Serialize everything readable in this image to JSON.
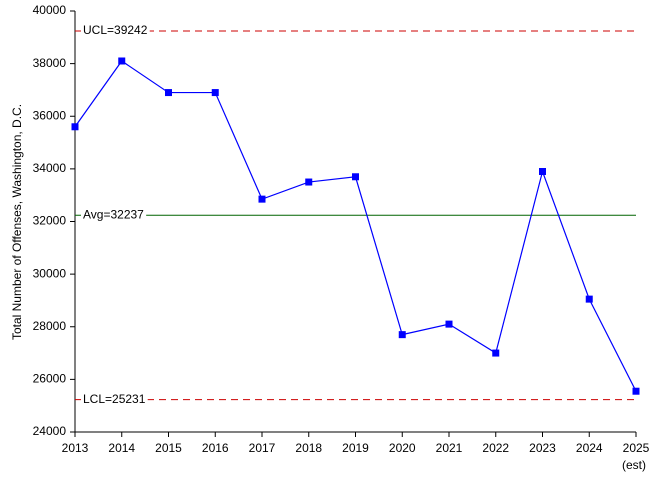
{
  "chart_data": {
    "type": "line",
    "y_label": "Total Number of Offenses, Washington, D.C.",
    "x": [
      2013,
      2014,
      2015,
      2016,
      2017,
      2018,
      2019,
      2020,
      2021,
      2022,
      2023,
      2024,
      2025
    ],
    "series": [
      {
        "color": "#0000ff",
        "values": [
          35600,
          38100,
          36900,
          36900,
          32850,
          33500,
          33700,
          27700,
          28100,
          27000,
          33900,
          29050,
          25550
        ]
      }
    ],
    "xlim": [
      2013,
      2025
    ],
    "xticks": [
      2013,
      2014,
      2015,
      2016,
      2017,
      2018,
      2019,
      2020,
      2021,
      2022,
      2023,
      2024,
      2025
    ],
    "ylim": [
      24000,
      40000
    ],
    "yticks": [
      24000,
      26000,
      28000,
      30000,
      32000,
      34000,
      36000,
      38000,
      40000
    ],
    "control_lines": [
      {
        "value": 39242,
        "label": "UCL=39242",
        "color": "#cc0000",
        "dashed": true
      },
      {
        "value": 32237,
        "label": "Avg=32237",
        "color": "#006400",
        "dashed": false
      },
      {
        "value": 25231,
        "label": "LCL=25231",
        "color": "#cc0000",
        "dashed": true
      }
    ],
    "annotations": [
      {
        "text": "(est)",
        "x": 2025
      }
    ],
    "grid": false
  }
}
